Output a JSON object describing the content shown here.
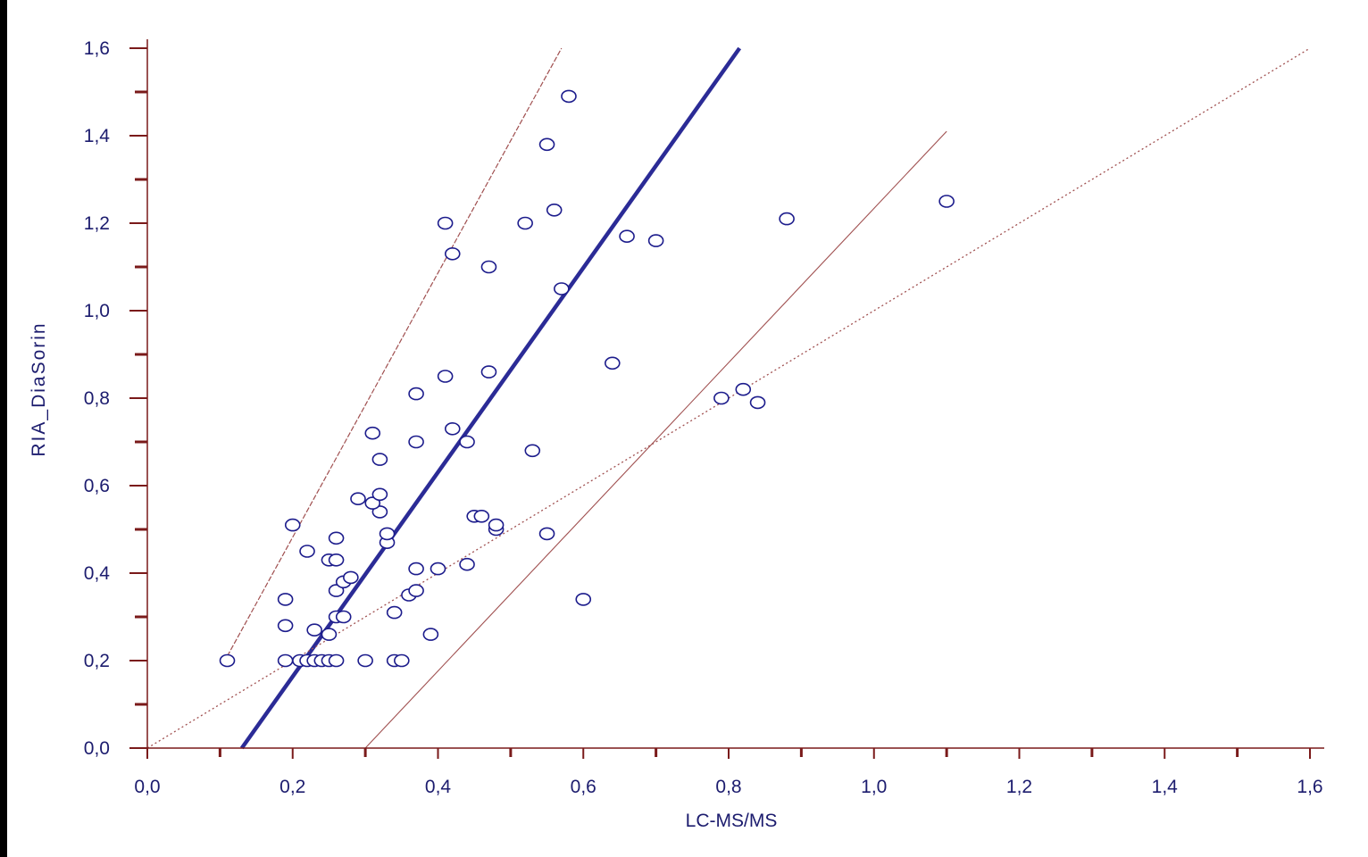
{
  "chart_data": {
    "type": "scatter",
    "title": "",
    "xlabel": "LC-MS/MS",
    "ylabel": "RIA_DiaSorin",
    "xlim": [
      0,
      1.6
    ],
    "ylim": [
      0,
      1.6
    ],
    "x_ticks": [
      "0,0",
      "0,2",
      "0,4",
      "0,6",
      "0,8",
      "1,0",
      "1,2",
      "1,4",
      "1,6"
    ],
    "y_ticks": [
      "0,0",
      "0,2",
      "0,4",
      "0,6",
      "0,8",
      "1,0",
      "1,2",
      "1,4",
      "1,6"
    ],
    "grid": false,
    "legend": "none",
    "colors": {
      "points": "#1c1c8c",
      "regression": "#2b2b96",
      "bounds": "#a05050",
      "identity": "#a05050",
      "axes": "#7a1a1a",
      "text": "#1c1c6e"
    },
    "points": [
      [
        0.11,
        0.2
      ],
      [
        0.19,
        0.2
      ],
      [
        0.21,
        0.2
      ],
      [
        0.22,
        0.2
      ],
      [
        0.23,
        0.2
      ],
      [
        0.24,
        0.2
      ],
      [
        0.25,
        0.2
      ],
      [
        0.26,
        0.2
      ],
      [
        0.3,
        0.2
      ],
      [
        0.34,
        0.2
      ],
      [
        0.35,
        0.2
      ],
      [
        0.39,
        0.26
      ],
      [
        0.25,
        0.26
      ],
      [
        0.23,
        0.27
      ],
      [
        0.19,
        0.28
      ],
      [
        0.26,
        0.3
      ],
      [
        0.27,
        0.3
      ],
      [
        0.34,
        0.31
      ],
      [
        0.19,
        0.34
      ],
      [
        0.6,
        0.34
      ],
      [
        0.36,
        0.35
      ],
      [
        0.26,
        0.36
      ],
      [
        0.37,
        0.36
      ],
      [
        0.27,
        0.38
      ],
      [
        0.28,
        0.39
      ],
      [
        0.37,
        0.41
      ],
      [
        0.4,
        0.41
      ],
      [
        0.44,
        0.42
      ],
      [
        0.25,
        0.43
      ],
      [
        0.26,
        0.43
      ],
      [
        0.22,
        0.45
      ],
      [
        0.33,
        0.47
      ],
      [
        0.26,
        0.48
      ],
      [
        0.33,
        0.49
      ],
      [
        0.55,
        0.49
      ],
      [
        0.48,
        0.5
      ],
      [
        0.2,
        0.51
      ],
      [
        0.48,
        0.51
      ],
      [
        0.45,
        0.53
      ],
      [
        0.46,
        0.53
      ],
      [
        0.32,
        0.54
      ],
      [
        0.31,
        0.56
      ],
      [
        0.29,
        0.57
      ],
      [
        0.32,
        0.58
      ],
      [
        0.32,
        0.66
      ],
      [
        0.53,
        0.68
      ],
      [
        0.37,
        0.7
      ],
      [
        0.44,
        0.7
      ],
      [
        0.31,
        0.72
      ],
      [
        0.42,
        0.73
      ],
      [
        0.79,
        0.8
      ],
      [
        0.37,
        0.81
      ],
      [
        0.82,
        0.82
      ],
      [
        0.84,
        0.79
      ],
      [
        0.41,
        0.85
      ],
      [
        0.47,
        0.86
      ],
      [
        0.64,
        0.88
      ],
      [
        0.57,
        1.05
      ],
      [
        0.47,
        1.1
      ],
      [
        0.42,
        1.13
      ],
      [
        0.7,
        1.16
      ],
      [
        0.66,
        1.17
      ],
      [
        0.41,
        1.2
      ],
      [
        0.52,
        1.2
      ],
      [
        0.88,
        1.21
      ],
      [
        0.56,
        1.23
      ],
      [
        1.1,
        1.25
      ],
      [
        0.55,
        1.38
      ],
      [
        0.58,
        1.49
      ]
    ],
    "lines": [
      {
        "role": "regression",
        "style": "solid-thick",
        "from": [
          0.13,
          0.0
        ],
        "to": [
          0.815,
          1.6
        ]
      },
      {
        "role": "upper-bound",
        "style": "dashed",
        "from": [
          0.11,
          0.21
        ],
        "to": [
          0.57,
          1.6
        ]
      },
      {
        "role": "lower-bound",
        "style": "thin",
        "from": [
          0.3,
          0.0
        ],
        "to": [
          1.1,
          1.41
        ]
      },
      {
        "role": "identity",
        "style": "dotted",
        "from": [
          0.0,
          0.0
        ],
        "to": [
          1.6,
          1.6
        ]
      }
    ]
  }
}
